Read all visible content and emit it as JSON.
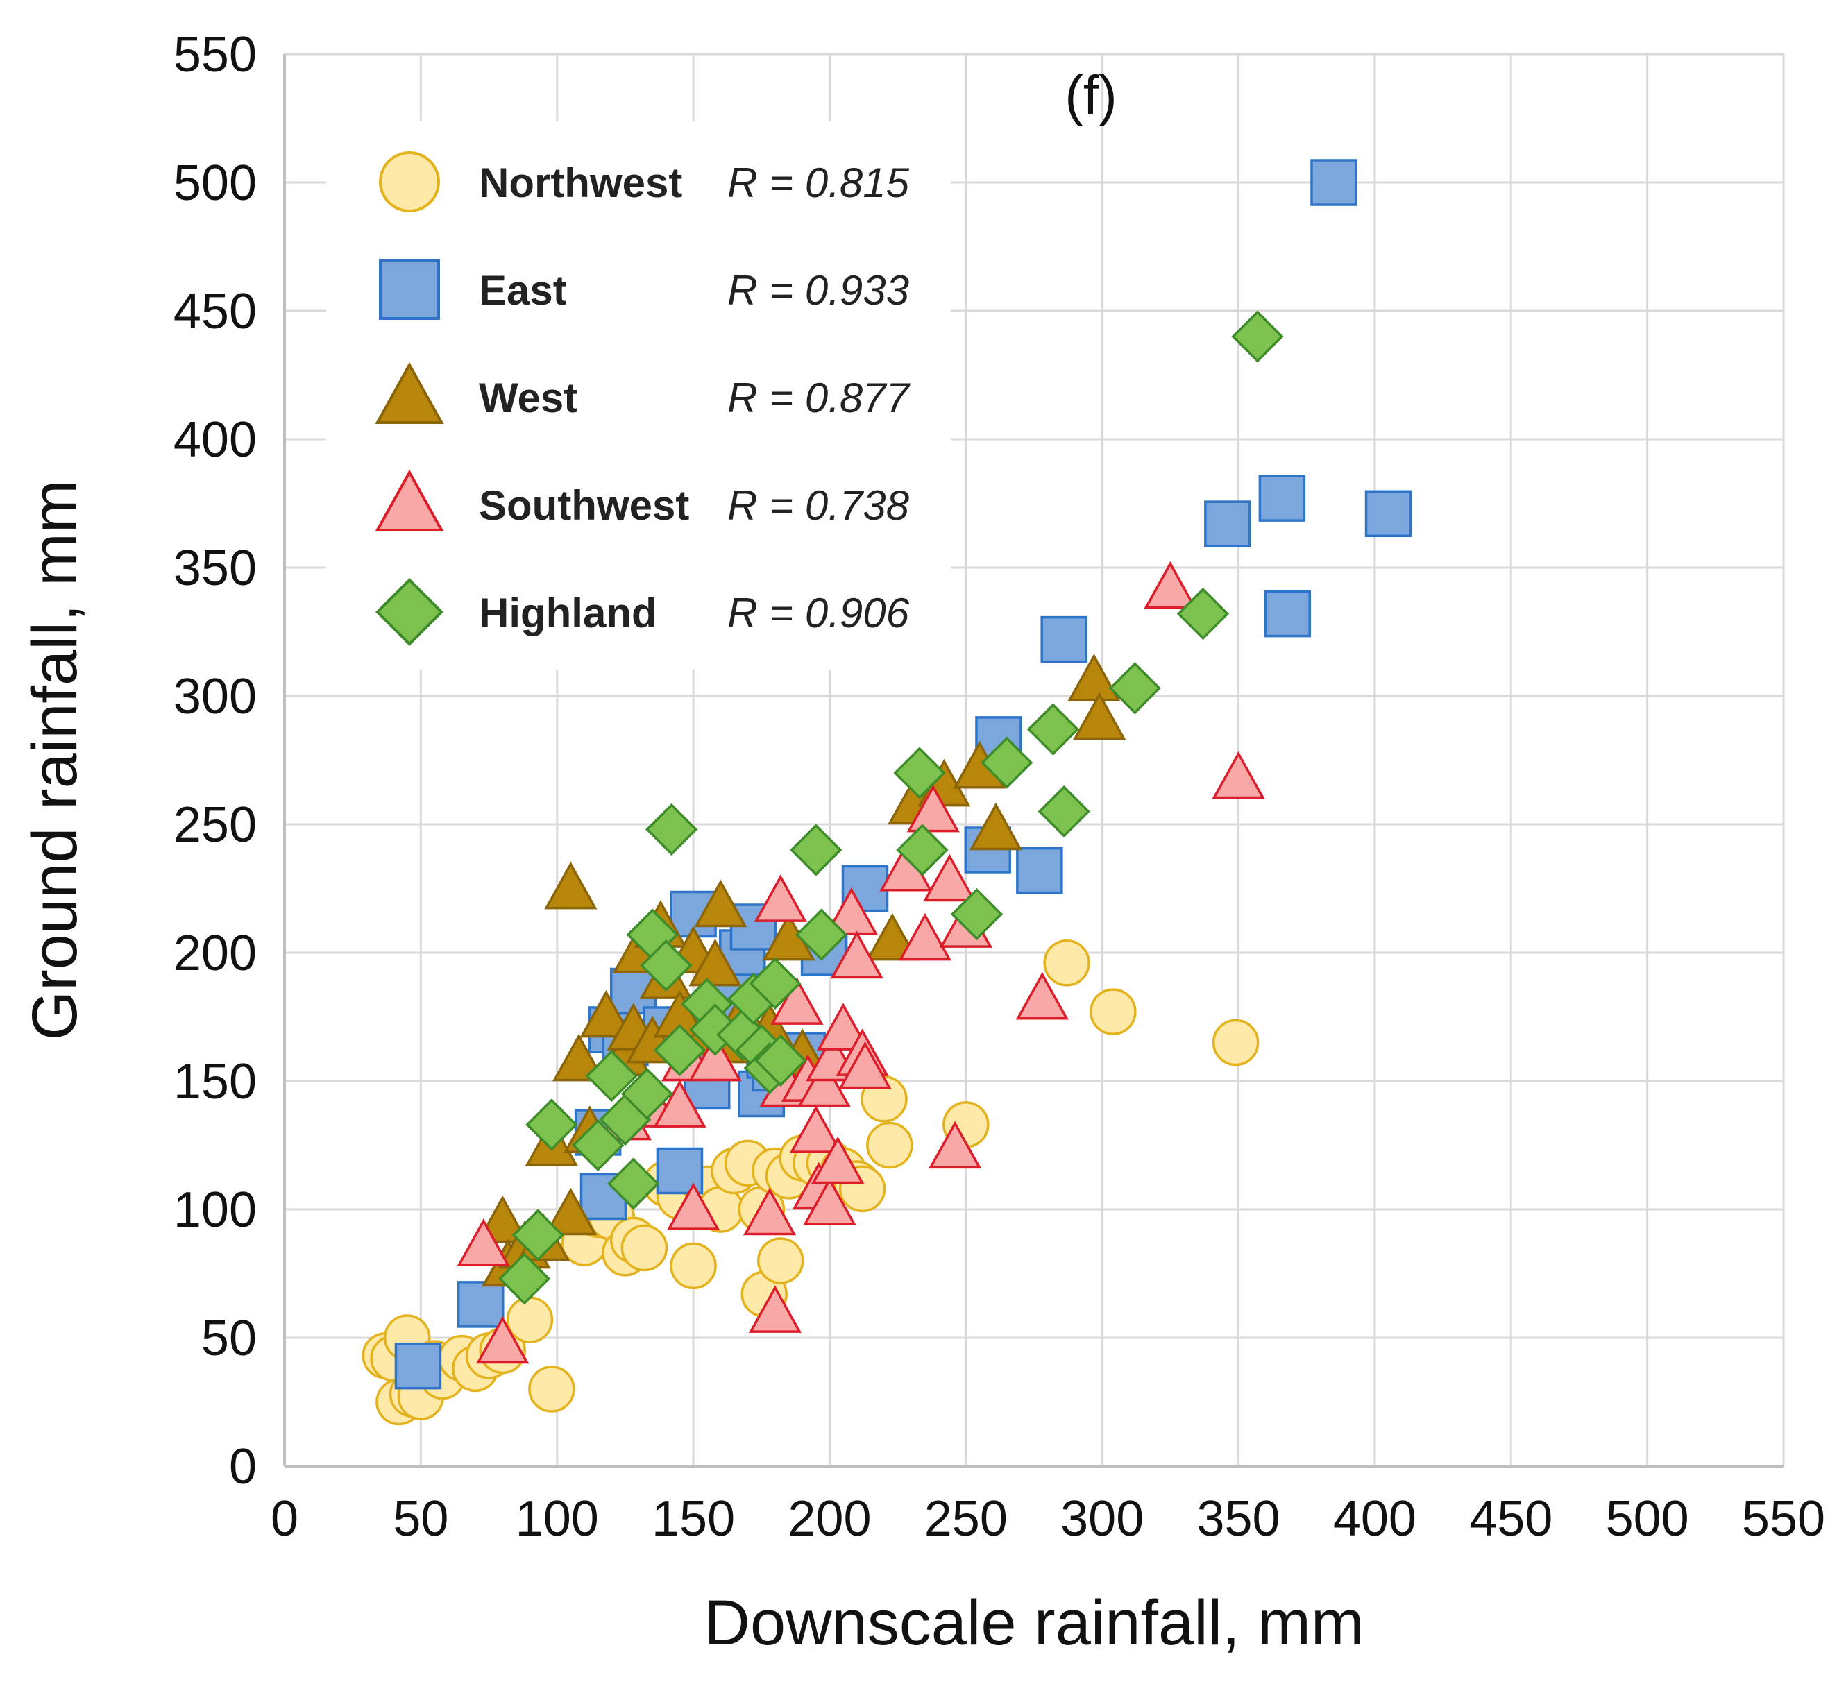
{
  "chart_data": {
    "type": "scatter",
    "title": "",
    "panel_label": "(f)",
    "xlabel": "Downscale rainfall, mm",
    "ylabel": "Ground rainfall, mm",
    "xlim": [
      0,
      550
    ],
    "ylim": [
      0,
      550
    ],
    "xticks": [
      "0",
      "50",
      "100",
      "150",
      "200",
      "250",
      "300",
      "350",
      "400",
      "450",
      "500",
      "550"
    ],
    "yticks": [
      "0",
      "50",
      "100",
      "150",
      "200",
      "250",
      "300",
      "350",
      "400",
      "450",
      "500",
      "550"
    ],
    "grid": true,
    "legend_position": "top-left",
    "series": [
      {
        "name": "Northwest",
        "r_label": "R = 0.815",
        "marker": "circle",
        "fill": "#FFE9A8",
        "stroke": "#E3B21C",
        "points": [
          [
            37,
            43
          ],
          [
            40,
            42
          ],
          [
            42,
            25
          ],
          [
            45,
            50
          ],
          [
            47,
            28
          ],
          [
            50,
            27
          ],
          [
            55,
            40
          ],
          [
            58,
            35
          ],
          [
            65,
            42
          ],
          [
            70,
            38
          ],
          [
            75,
            43
          ],
          [
            80,
            45
          ],
          [
            90,
            57
          ],
          [
            98,
            30
          ],
          [
            110,
            87
          ],
          [
            115,
            98
          ],
          [
            120,
            97
          ],
          [
            125,
            83
          ],
          [
            128,
            88
          ],
          [
            132,
            85
          ],
          [
            135,
            200
          ],
          [
            140,
            110
          ],
          [
            145,
            105
          ],
          [
            150,
            78
          ],
          [
            155,
            108
          ],
          [
            160,
            100
          ],
          [
            165,
            115
          ],
          [
            170,
            118
          ],
          [
            175,
            100
          ],
          [
            176,
            67
          ],
          [
            180,
            115
          ],
          [
            182,
            80
          ],
          [
            185,
            113
          ],
          [
            190,
            120
          ],
          [
            195,
            118
          ],
          [
            200,
            118
          ],
          [
            205,
            115
          ],
          [
            210,
            110
          ],
          [
            212,
            108
          ],
          [
            220,
            143
          ],
          [
            222,
            125
          ],
          [
            250,
            133
          ],
          [
            287,
            196
          ],
          [
            304,
            177
          ],
          [
            349,
            165
          ]
        ]
      },
      {
        "name": "East",
        "r_label": "R = 0.933",
        "marker": "square",
        "fill": "#7BA7DC",
        "stroke": "#2E75C9",
        "points": [
          [
            49,
            39
          ],
          [
            72,
            63
          ],
          [
            115,
            130
          ],
          [
            117,
            105
          ],
          [
            120,
            170
          ],
          [
            125,
            165
          ],
          [
            128,
            185
          ],
          [
            140,
            170
          ],
          [
            145,
            115
          ],
          [
            150,
            215
          ],
          [
            152,
            160
          ],
          [
            155,
            148
          ],
          [
            158,
            175
          ],
          [
            165,
            190
          ],
          [
            168,
            200
          ],
          [
            172,
            210
          ],
          [
            175,
            145
          ],
          [
            178,
            160
          ],
          [
            180,
            155
          ],
          [
            190,
            160
          ],
          [
            198,
            200
          ],
          [
            213,
            225
          ],
          [
            258,
            240
          ],
          [
            262,
            283
          ],
          [
            277,
            232
          ],
          [
            286,
            322
          ],
          [
            346,
            367
          ],
          [
            366,
            377
          ],
          [
            368,
            332
          ],
          [
            385,
            500
          ],
          [
            405,
            371
          ]
        ]
      },
      {
        "name": "West",
        "r_label": "R = 0.877",
        "marker": "triangle",
        "fill": "#B8860B",
        "stroke": "#8B6508",
        "points": [
          [
            80,
            95
          ],
          [
            82,
            78
          ],
          [
            88,
            85
          ],
          [
            95,
            88
          ],
          [
            98,
            125
          ],
          [
            105,
            98
          ],
          [
            105,
            225
          ],
          [
            108,
            158
          ],
          [
            112,
            130
          ],
          [
            118,
            175
          ],
          [
            125,
            160
          ],
          [
            128,
            170
          ],
          [
            130,
            200
          ],
          [
            135,
            165
          ],
          [
            138,
            210
          ],
          [
            140,
            190
          ],
          [
            145,
            175
          ],
          [
            150,
            200
          ],
          [
            155,
            168
          ],
          [
            158,
            195
          ],
          [
            160,
            218
          ],
          [
            162,
            165
          ],
          [
            168,
            175
          ],
          [
            178,
            170
          ],
          [
            185,
            205
          ],
          [
            190,
            160
          ],
          [
            223,
            205
          ],
          [
            231,
            258
          ],
          [
            242,
            265
          ],
          [
            255,
            272
          ],
          [
            261,
            248
          ],
          [
            297,
            306
          ],
          [
            299,
            291
          ]
        ]
      },
      {
        "name": "Southwest",
        "r_label": "R = 0.738",
        "marker": "triangle",
        "fill": "#F9A8A8",
        "stroke": "#DC1E2A",
        "points": [
          [
            73,
            86
          ],
          [
            80,
            48
          ],
          [
            125,
            135
          ],
          [
            135,
            140
          ],
          [
            145,
            140
          ],
          [
            148,
            158
          ],
          [
            150,
            100
          ],
          [
            158,
            158
          ],
          [
            178,
            98
          ],
          [
            180,
            60
          ],
          [
            182,
            220
          ],
          [
            184,
            148
          ],
          [
            188,
            180
          ],
          [
            192,
            150
          ],
          [
            195,
            130
          ],
          [
            196,
            108
          ],
          [
            198,
            148
          ],
          [
            200,
            102
          ],
          [
            201,
            158
          ],
          [
            203,
            118
          ],
          [
            205,
            170
          ],
          [
            208,
            215
          ],
          [
            210,
            198
          ],
          [
            212,
            160
          ],
          [
            213,
            155
          ],
          [
            228,
            232
          ],
          [
            235,
            205
          ],
          [
            238,
            255
          ],
          [
            244,
            228
          ],
          [
            246,
            124
          ],
          [
            250,
            210
          ],
          [
            278,
            182
          ],
          [
            325,
            342
          ],
          [
            350,
            268
          ]
        ]
      },
      {
        "name": "Highland",
        "r_label": "R = 0.906",
        "marker": "diamond",
        "fill": "#7DC24E",
        "stroke": "#3F8C2A",
        "points": [
          [
            88,
            73
          ],
          [
            93,
            90
          ],
          [
            98,
            133
          ],
          [
            115,
            125
          ],
          [
            120,
            152
          ],
          [
            125,
            135
          ],
          [
            128,
            110
          ],
          [
            133,
            145
          ],
          [
            135,
            207
          ],
          [
            140,
            195
          ],
          [
            142,
            248
          ],
          [
            145,
            162
          ],
          [
            155,
            180
          ],
          [
            158,
            170
          ],
          [
            168,
            168
          ],
          [
            172,
            182
          ],
          [
            175,
            162
          ],
          [
            178,
            155
          ],
          [
            180,
            188
          ],
          [
            182,
            158
          ],
          [
            195,
            240
          ],
          [
            197,
            207
          ],
          [
            233,
            270
          ],
          [
            234,
            240
          ],
          [
            254,
            215
          ],
          [
            265,
            274
          ],
          [
            282,
            287
          ],
          [
            286,
            255
          ],
          [
            312,
            303
          ],
          [
            337,
            332
          ],
          [
            357,
            440
          ]
        ]
      }
    ]
  }
}
